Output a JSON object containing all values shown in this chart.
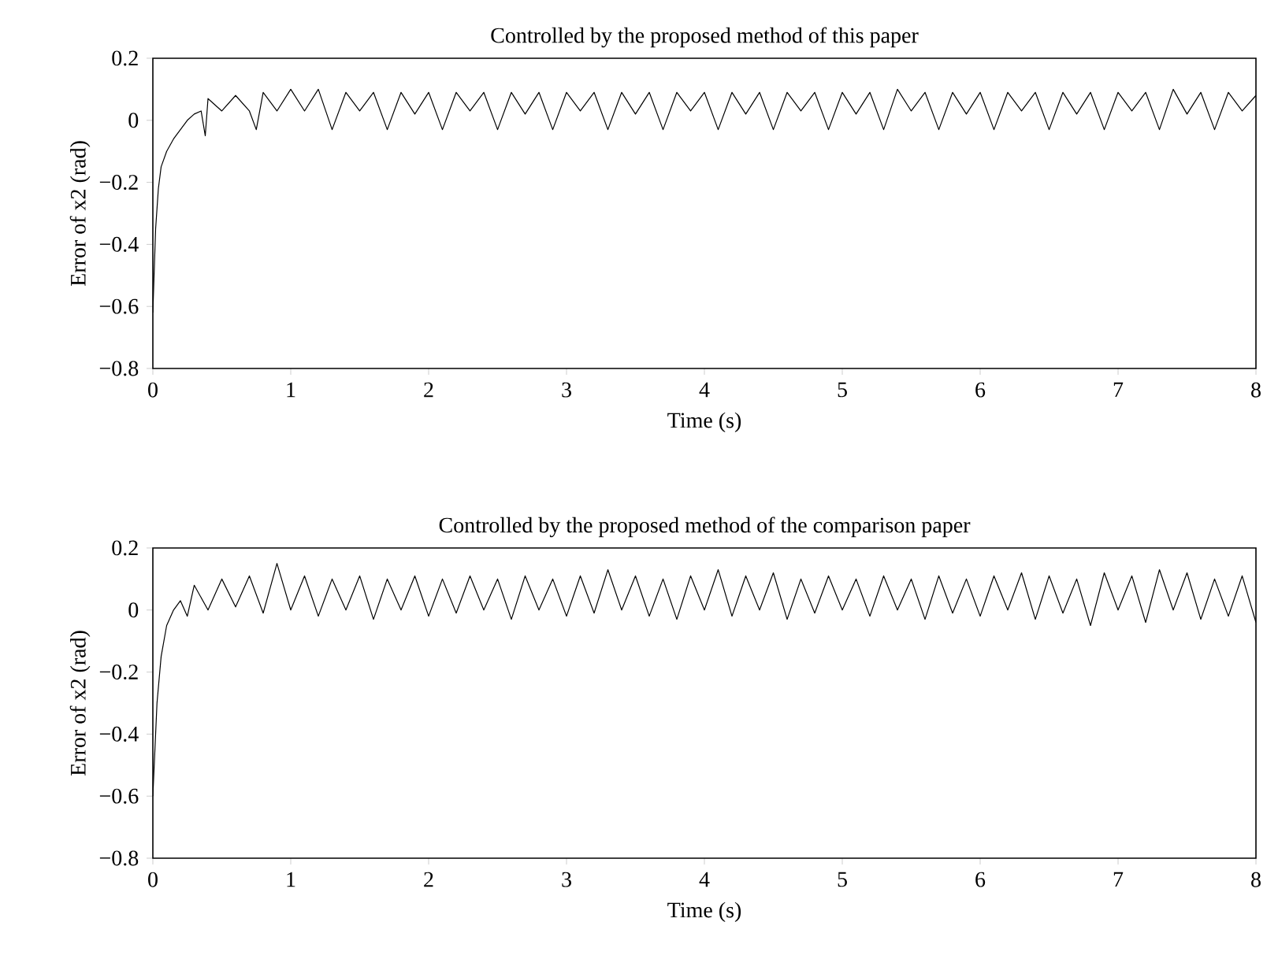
{
  "chart_data": [
    {
      "type": "line",
      "title": "Controlled by the proposed method of this paper",
      "xlabel": "Time (s)",
      "ylabel": "Error of x2 (rad)",
      "x": [
        0,
        0.02,
        0.04,
        0.06,
        0.1,
        0.15,
        0.2,
        0.25,
        0.3,
        0.35,
        0.38,
        0.4,
        0.5,
        0.6,
        0.7,
        0.75,
        0.8,
        0.9,
        1.0,
        1.1,
        1.2,
        1.3,
        1.4,
        1.5,
        1.6,
        1.7,
        1.8,
        1.9,
        2.0,
        2.1,
        2.2,
        2.3,
        2.4,
        2.5,
        2.6,
        2.7,
        2.8,
        2.9,
        3.0,
        3.1,
        3.2,
        3.3,
        3.4,
        3.5,
        3.6,
        3.7,
        3.8,
        3.9,
        4.0,
        4.1,
        4.2,
        4.3,
        4.4,
        4.5,
        4.6,
        4.7,
        4.8,
        4.9,
        5.0,
        5.1,
        5.2,
        5.3,
        5.4,
        5.5,
        5.6,
        5.7,
        5.8,
        5.9,
        6.0,
        6.1,
        6.2,
        6.3,
        6.4,
        6.5,
        6.6,
        6.7,
        6.8,
        6.9,
        7.0,
        7.1,
        7.2,
        7.3,
        7.4,
        7.5,
        7.6,
        7.7,
        7.8,
        7.9,
        8.0
      ],
      "series": [
        {
          "color": "#000000",
          "values": [
            -0.62,
            -0.35,
            -0.22,
            -0.15,
            -0.1,
            -0.06,
            -0.03,
            0.0,
            0.02,
            0.03,
            -0.05,
            0.07,
            0.03,
            0.08,
            0.03,
            -0.03,
            0.09,
            0.03,
            0.1,
            0.03,
            0.1,
            -0.03,
            0.09,
            0.03,
            0.09,
            -0.03,
            0.09,
            0.02,
            0.09,
            -0.03,
            0.09,
            0.03,
            0.09,
            -0.03,
            0.09,
            0.02,
            0.09,
            -0.03,
            0.09,
            0.03,
            0.09,
            -0.03,
            0.09,
            0.02,
            0.09,
            -0.03,
            0.09,
            0.03,
            0.09,
            -0.03,
            0.09,
            0.02,
            0.09,
            -0.03,
            0.09,
            0.03,
            0.09,
            -0.03,
            0.09,
            0.02,
            0.09,
            -0.03,
            0.1,
            0.03,
            0.09,
            -0.03,
            0.09,
            0.02,
            0.09,
            -0.03,
            0.09,
            0.03,
            0.09,
            -0.03,
            0.09,
            0.02,
            0.09,
            -0.03,
            0.09,
            0.03,
            0.09,
            -0.03,
            0.1,
            0.02,
            0.09,
            -0.03,
            0.09,
            0.03,
            0.08
          ]
        }
      ],
      "xlim": [
        0,
        8
      ],
      "ylim": [
        -0.8,
        0.2
      ],
      "xticks": [
        0,
        1,
        2,
        3,
        4,
        5,
        6,
        7,
        8
      ],
      "yticks": [
        {
          "value": -0.8,
          "label": "−0.8"
        },
        {
          "value": -0.6,
          "label": "−0.6"
        },
        {
          "value": -0.4,
          "label": "−0.4"
        },
        {
          "value": -0.2,
          "label": "−0.2"
        },
        0,
        0.2
      ],
      "tick_labels": true
    },
    {
      "type": "line",
      "title": "Controlled by the proposed method of the comparison paper",
      "xlabel": "Time (s)",
      "ylabel": "Error of x2 (rad)",
      "x": [
        0,
        0.03,
        0.06,
        0.1,
        0.15,
        0.2,
        0.25,
        0.3,
        0.4,
        0.5,
        0.6,
        0.7,
        0.8,
        0.9,
        1.0,
        1.1,
        1.2,
        1.3,
        1.4,
        1.5,
        1.6,
        1.7,
        1.8,
        1.9,
        2.0,
        2.1,
        2.2,
        2.3,
        2.4,
        2.5,
        2.6,
        2.7,
        2.8,
        2.9,
        3.0,
        3.1,
        3.2,
        3.3,
        3.4,
        3.5,
        3.6,
        3.7,
        3.8,
        3.9,
        4.0,
        4.1,
        4.2,
        4.3,
        4.4,
        4.5,
        4.6,
        4.7,
        4.8,
        4.9,
        5.0,
        5.1,
        5.2,
        5.3,
        5.4,
        5.5,
        5.6,
        5.7,
        5.8,
        5.9,
        6.0,
        6.1,
        6.2,
        6.3,
        6.4,
        6.5,
        6.6,
        6.7,
        6.8,
        6.9,
        7.0,
        7.1,
        7.2,
        7.3,
        7.4,
        7.5,
        7.6,
        7.7,
        7.8,
        7.9,
        8.0
      ],
      "series": [
        {
          "color": "#000000",
          "values": [
            -0.6,
            -0.3,
            -0.15,
            -0.05,
            0.0,
            0.03,
            -0.02,
            0.08,
            0.0,
            0.1,
            0.01,
            0.11,
            -0.01,
            0.15,
            0.0,
            0.11,
            -0.02,
            0.1,
            0.0,
            0.11,
            -0.03,
            0.1,
            0.0,
            0.11,
            -0.02,
            0.1,
            -0.01,
            0.11,
            0.0,
            0.1,
            -0.03,
            0.11,
            0.0,
            0.1,
            -0.02,
            0.11,
            -0.01,
            0.13,
            0.0,
            0.11,
            -0.02,
            0.1,
            -0.03,
            0.11,
            0.0,
            0.13,
            -0.02,
            0.11,
            0.0,
            0.12,
            -0.03,
            0.1,
            -0.01,
            0.11,
            0.0,
            0.1,
            -0.02,
            0.11,
            0.0,
            0.1,
            -0.03,
            0.11,
            -0.01,
            0.1,
            -0.02,
            0.11,
            0.0,
            0.12,
            -0.03,
            0.11,
            -0.01,
            0.1,
            -0.05,
            0.12,
            0.0,
            0.11,
            -0.04,
            0.13,
            0.0,
            0.12,
            -0.03,
            0.1,
            -0.02,
            0.11,
            -0.04
          ]
        }
      ],
      "xlim": [
        0,
        8
      ],
      "ylim": [
        -0.8,
        0.2
      ],
      "xticks": [
        0,
        1,
        2,
        3,
        4,
        5,
        6,
        7,
        8
      ],
      "yticks": [
        {
          "value": -0.8,
          "label": "−0.8"
        },
        {
          "value": -0.6,
          "label": "−0.6"
        },
        {
          "value": -0.4,
          "label": "−0.4"
        },
        {
          "value": -0.2,
          "label": "−0.2"
        },
        0,
        0.2
      ],
      "tick_labels": true
    }
  ]
}
